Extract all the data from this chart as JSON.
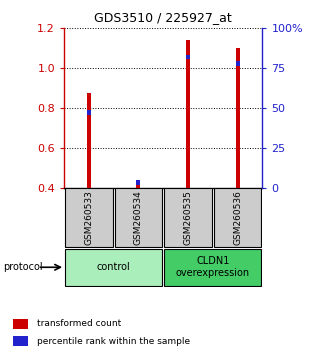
{
  "title": "GDS3510 / 225927_at",
  "samples": [
    "GSM260533",
    "GSM260534",
    "GSM260535",
    "GSM260536"
  ],
  "red_values": [
    0.873,
    0.432,
    1.143,
    1.102
  ],
  "blue_values_pct": [
    47,
    3,
    82,
    78
  ],
  "ylim_left": [
    0.4,
    1.2
  ],
  "ylim_right": [
    0,
    100
  ],
  "yticks_left": [
    0.4,
    0.6,
    0.8,
    1.0,
    1.2
  ],
  "yticks_right": [
    0,
    25,
    50,
    75,
    100
  ],
  "ytick_labels_right": [
    "0",
    "25",
    "50",
    "75",
    "100%"
  ],
  "red_color": "#cc0000",
  "blue_color": "#2222cc",
  "bar_width": 0.08,
  "groups": [
    {
      "label": "control",
      "samples": [
        0,
        1
      ],
      "color": "#aaeebb"
    },
    {
      "label": "CLDN1\noverexpression",
      "samples": [
        2,
        3
      ],
      "color": "#44cc66"
    }
  ],
  "protocol_label": "protocol",
  "legend_items": [
    {
      "color": "#cc0000",
      "label": "transformed count"
    },
    {
      "color": "#2222cc",
      "label": "percentile rank within the sample"
    }
  ],
  "sample_box_color": "#cccccc",
  "background_color": "#ffffff"
}
